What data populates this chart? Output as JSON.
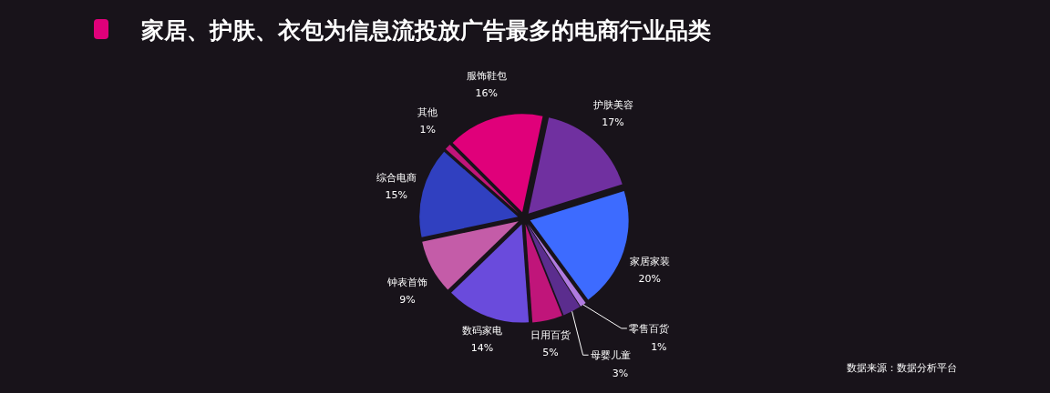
{
  "chart_data": {
    "type": "pie",
    "title": "家居、护肤、衣包为信息流投放广告最多的电商行业品类",
    "categories": [
      "护肤美容",
      "家居家装",
      "零售百货",
      "母婴儿童",
      "日用百货",
      "数码家电",
      "钟表首饰",
      "综合电商",
      "其他",
      "服饰鞋包"
    ],
    "values": [
      17,
      20,
      1,
      3,
      5,
      14,
      9,
      15,
      1,
      16
    ],
    "value_labels": [
      "17%",
      "20%",
      "1%",
      "3%",
      "5%",
      "14%",
      "9%",
      "15%",
      "1%",
      "16%"
    ],
    "colors": [
      "#7030a0",
      "#3d6bff",
      "#b07be0",
      "#5b2d8e",
      "#c0157a",
      "#6a4bdc",
      "#c45ca8",
      "#3040c0",
      "#c0157a",
      "#e0007a"
    ],
    "annotations": [
      "数据来源：数据分析平台"
    ]
  }
}
